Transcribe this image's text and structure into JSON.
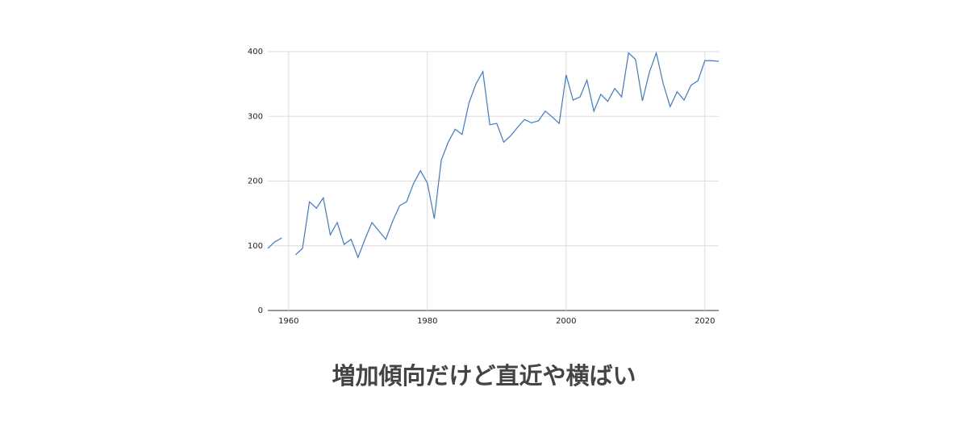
{
  "chart_data": {
    "type": "line",
    "title": "増加傾向だけど直近や横ばい",
    "x": [
      1957,
      1958,
      1959,
      1960,
      1961,
      1962,
      1963,
      1964,
      1965,
      1966,
      1967,
      1968,
      1969,
      1970,
      1971,
      1972,
      1973,
      1974,
      1975,
      1976,
      1977,
      1978,
      1979,
      1980,
      1981,
      1982,
      1983,
      1984,
      1985,
      1986,
      1987,
      1988,
      1989,
      1990,
      1991,
      1992,
      1993,
      1994,
      1995,
      1996,
      1997,
      1998,
      1999,
      2000,
      2001,
      2002,
      2003,
      2004,
      2005,
      2006,
      2007,
      2008,
      2009,
      2010,
      2011,
      2012,
      2013,
      2014,
      2015,
      2016,
      2017,
      2018,
      2019,
      2020,
      2021,
      2022
    ],
    "series": [
      {
        "color": "#3c78d8",
        "values": [
          96,
          106,
          112,
          null,
          86,
          96,
          168,
          158,
          174,
          117,
          136,
          102,
          110,
          82,
          110,
          136,
          123,
          110,
          138,
          162,
          168,
          196,
          216,
          197,
          142,
          232,
          260,
          280,
          272,
          321,
          350,
          369,
          287,
          289,
          260,
          270,
          283,
          295,
          290,
          293,
          308,
          299,
          289,
          364,
          325,
          330,
          356,
          308,
          334,
          323,
          343,
          330,
          398,
          388,
          324,
          368,
          398,
          350,
          315,
          338,
          325,
          348,
          355,
          386,
          386,
          385
        ]
      }
    ],
    "xlim": [
      1957,
      2022
    ],
    "xticks": [
      1960,
      1980,
      2000,
      2020
    ],
    "ylim": [
      0,
      400
    ],
    "yticks": [
      0,
      100,
      200,
      300,
      400
    ],
    "grid": true
  }
}
